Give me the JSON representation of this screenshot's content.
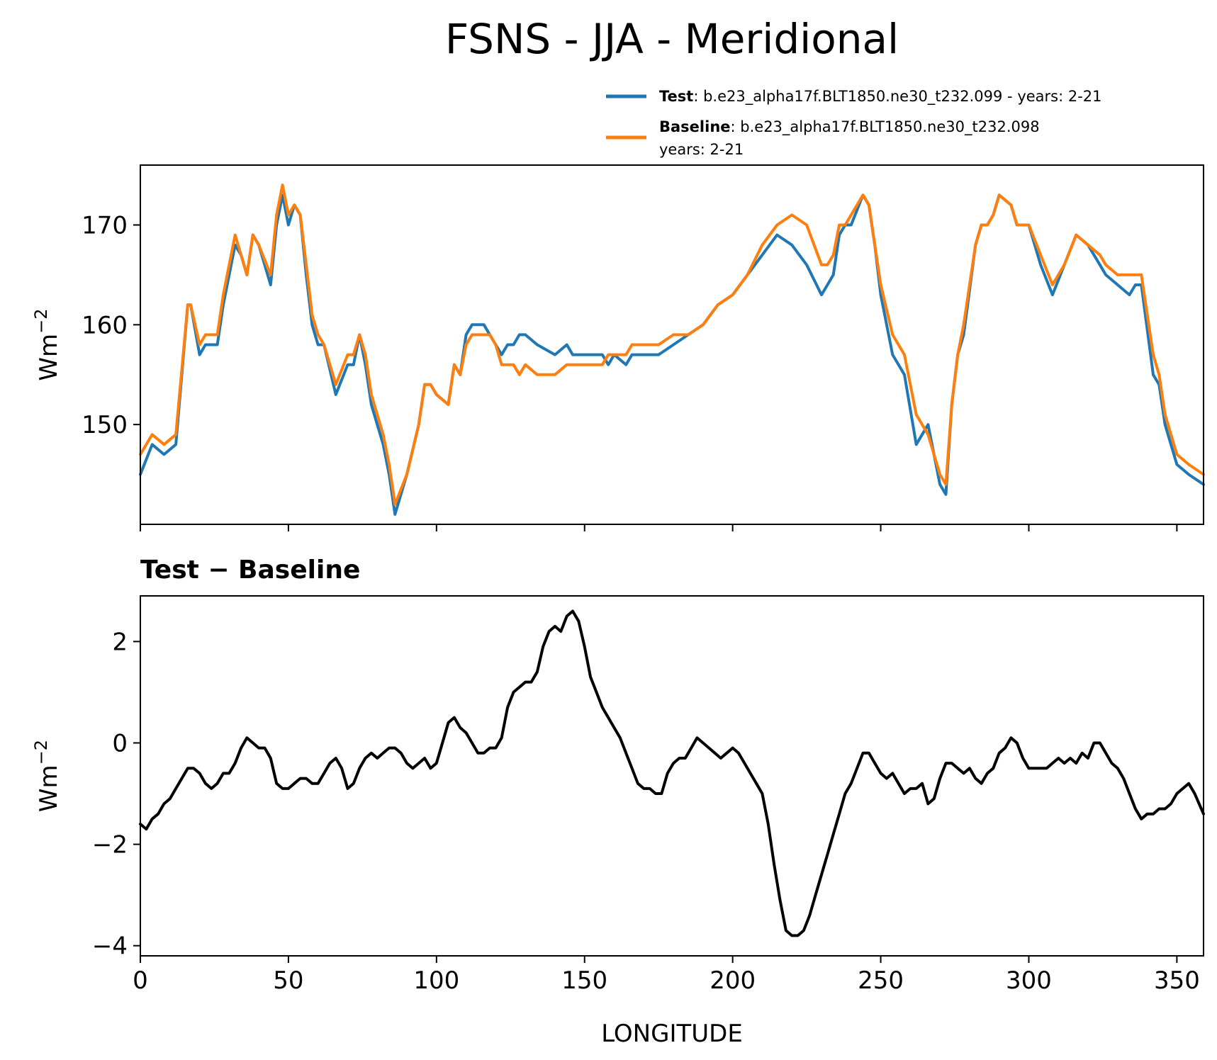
{
  "figure": {
    "title": "FSNS - JJA - Meridional",
    "xlabel": "LONGITUDE"
  },
  "legend": {
    "test_name": "Test",
    "test_desc": ": b.e23_alpha17f.BLT1850.ne30_t232.099 - years: 2-21",
    "baseline_name": "Baseline",
    "baseline_desc": ": b.e23_alpha17f.BLT1850.ne30_t232.098",
    "baseline_desc2": "years: 2-21"
  },
  "colors": {
    "test": "#1f77b4",
    "baseline": "#ff7f0e",
    "diff": "#000000"
  },
  "chart_data": [
    {
      "type": "line",
      "title": "",
      "xlabel": "",
      "ylabel_base": "Wm",
      "ylabel_exp": "−2",
      "xlim": [
        0,
        359
      ],
      "ylim": [
        140,
        176
      ],
      "xticks": [
        0,
        50,
        100,
        150,
        200,
        250,
        300,
        350
      ],
      "yticks": [
        150,
        160,
        170
      ],
      "series": [
        {
          "name": "Test",
          "x": [
            0,
            4,
            8,
            12,
            16,
            17,
            20,
            22,
            26,
            28,
            32,
            34,
            36,
            38,
            40,
            44,
            46,
            48,
            50,
            52,
            54,
            56,
            58,
            60,
            62,
            66,
            70,
            72,
            74,
            76,
            78,
            82,
            84,
            86,
            90,
            94,
            96,
            98,
            100,
            104,
            106,
            108,
            110,
            112,
            116,
            118,
            120,
            122,
            124,
            126,
            128,
            130,
            134,
            140,
            144,
            146,
            148,
            150,
            154,
            156,
            158,
            160,
            164,
            166,
            170,
            175,
            180,
            185,
            190,
            195,
            200,
            205,
            210,
            215,
            220,
            225,
            230,
            232,
            234,
            236,
            238,
            240,
            244,
            246,
            248,
            250,
            254,
            258,
            262,
            266,
            270,
            272,
            274,
            276,
            278,
            282,
            284,
            286,
            288,
            290,
            294,
            296,
            300,
            304,
            308,
            312,
            316,
            320,
            324,
            326,
            330,
            334,
            336,
            338,
            342,
            344,
            346,
            350,
            354,
            359
          ],
          "values": [
            145,
            148,
            147,
            148,
            162,
            162,
            157,
            158,
            158,
            162,
            168,
            167,
            165,
            169,
            168,
            164,
            170,
            173,
            170,
            172,
            171,
            165,
            160,
            158,
            158,
            153,
            156,
            156,
            159,
            156,
            152,
            148,
            145,
            141,
            145,
            150,
            154,
            154,
            153,
            152,
            156,
            155,
            159,
            160,
            160,
            159,
            158,
            157,
            158,
            158,
            159,
            159,
            158,
            157,
            158,
            157,
            157,
            157,
            157,
            157,
            156,
            157,
            156,
            157,
            157,
            157,
            158,
            159,
            160,
            162,
            163,
            165,
            167,
            169,
            168,
            166,
            163,
            164,
            165,
            169,
            170,
            170,
            173,
            172,
            168,
            163,
            157,
            155,
            148,
            150,
            144,
            143,
            152,
            157,
            159,
            168,
            170,
            170,
            171,
            173,
            172,
            170,
            170,
            166,
            163,
            166,
            169,
            168,
            166,
            165,
            164,
            163,
            164,
            164,
            155,
            154,
            150,
            146,
            145,
            144
          ]
        },
        {
          "name": "Baseline",
          "x": [
            0,
            4,
            8,
            12,
            16,
            17,
            20,
            22,
            26,
            28,
            32,
            34,
            36,
            38,
            40,
            44,
            46,
            48,
            50,
            52,
            54,
            56,
            58,
            60,
            62,
            66,
            70,
            72,
            74,
            76,
            78,
            82,
            84,
            86,
            90,
            94,
            96,
            98,
            100,
            104,
            106,
            108,
            110,
            112,
            116,
            118,
            120,
            122,
            124,
            126,
            128,
            130,
            134,
            140,
            144,
            146,
            148,
            150,
            154,
            156,
            158,
            160,
            164,
            166,
            170,
            175,
            180,
            185,
            190,
            195,
            200,
            205,
            210,
            215,
            220,
            225,
            230,
            232,
            234,
            236,
            238,
            240,
            244,
            246,
            248,
            250,
            254,
            258,
            262,
            266,
            270,
            272,
            274,
            276,
            278,
            282,
            284,
            286,
            288,
            290,
            294,
            296,
            300,
            304,
            308,
            312,
            316,
            320,
            324,
            326,
            330,
            334,
            336,
            338,
            342,
            344,
            346,
            350,
            354,
            359
          ],
          "values": [
            147,
            149,
            148,
            149,
            162,
            162,
            158,
            159,
            159,
            163,
            169,
            167,
            165,
            169,
            168,
            165,
            171,
            174,
            171,
            172,
            171,
            166,
            161,
            159,
            158,
            154,
            157,
            157,
            159,
            157,
            153,
            149,
            146,
            142,
            145,
            150,
            154,
            154,
            153,
            152,
            156,
            155,
            158,
            159,
            159,
            159,
            158,
            156,
            156,
            156,
            155,
            156,
            155,
            155,
            156,
            156,
            156,
            156,
            156,
            156,
            157,
            157,
            157,
            158,
            158,
            158,
            159,
            159,
            160,
            162,
            163,
            165,
            168,
            170,
            171,
            170,
            166,
            166,
            167,
            170,
            170,
            171,
            173,
            172,
            168,
            164,
            159,
            157,
            151,
            149,
            145,
            144,
            152,
            157,
            160,
            168,
            170,
            170,
            171,
            173,
            172,
            170,
            170,
            167,
            164,
            166,
            169,
            168,
            167,
            166,
            165,
            165,
            165,
            165,
            157,
            155,
            151,
            147,
            146,
            145
          ]
        }
      ]
    },
    {
      "type": "line",
      "title": "Test − Baseline",
      "xlabel": "LONGITUDE",
      "ylabel_base": "Wm",
      "ylabel_exp": "−2",
      "xlim": [
        0,
        359
      ],
      "ylim": [
        -4.2,
        2.9
      ],
      "xticks": [
        0,
        50,
        100,
        150,
        200,
        250,
        300,
        350
      ],
      "yticks": [
        -4,
        -2,
        0,
        2
      ],
      "series": [
        {
          "name": "",
          "x": [
            0,
            2,
            4,
            6,
            8,
            10,
            12,
            14,
            16,
            18,
            20,
            22,
            24,
            26,
            28,
            30,
            32,
            34,
            36,
            38,
            40,
            42,
            44,
            46,
            48,
            50,
            52,
            54,
            56,
            58,
            60,
            62,
            64,
            66,
            68,
            70,
            72,
            74,
            76,
            78,
            80,
            82,
            84,
            86,
            88,
            90,
            92,
            94,
            96,
            98,
            100,
            102,
            104,
            106,
            108,
            110,
            112,
            114,
            116,
            118,
            120,
            122,
            124,
            126,
            128,
            130,
            132,
            134,
            136,
            138,
            140,
            142,
            144,
            146,
            148,
            150,
            152,
            154,
            156,
            158,
            160,
            162,
            164,
            166,
            168,
            170,
            172,
            174,
            176,
            178,
            180,
            182,
            184,
            186,
            188,
            190,
            192,
            194,
            196,
            198,
            200,
            202,
            204,
            206,
            208,
            210,
            212,
            214,
            216,
            218,
            220,
            222,
            224,
            226,
            228,
            230,
            232,
            234,
            236,
            238,
            240,
            242,
            244,
            246,
            248,
            250,
            252,
            254,
            256,
            258,
            260,
            262,
            264,
            266,
            268,
            270,
            272,
            274,
            276,
            278,
            280,
            282,
            284,
            286,
            288,
            290,
            292,
            294,
            296,
            298,
            300,
            302,
            304,
            306,
            308,
            310,
            312,
            314,
            316,
            318,
            320,
            322,
            324,
            326,
            328,
            330,
            332,
            334,
            336,
            338,
            340,
            342,
            344,
            346,
            348,
            350,
            352,
            354,
            356,
            359
          ],
          "values": [
            -1.6,
            -1.7,
            -1.5,
            -1.4,
            -1.2,
            -1.1,
            -0.9,
            -0.7,
            -0.5,
            -0.5,
            -0.6,
            -0.8,
            -0.9,
            -0.8,
            -0.6,
            -0.6,
            -0.4,
            -0.1,
            0.1,
            0.0,
            -0.1,
            -0.1,
            -0.3,
            -0.8,
            -0.9,
            -0.9,
            -0.8,
            -0.7,
            -0.7,
            -0.8,
            -0.8,
            -0.6,
            -0.4,
            -0.3,
            -0.5,
            -0.9,
            -0.8,
            -0.5,
            -0.3,
            -0.2,
            -0.3,
            -0.2,
            -0.1,
            -0.1,
            -0.2,
            -0.4,
            -0.5,
            -0.4,
            -0.3,
            -0.5,
            -0.4,
            0.0,
            0.4,
            0.5,
            0.3,
            0.2,
            0.0,
            -0.2,
            -0.2,
            -0.1,
            -0.1,
            0.1,
            0.7,
            1.0,
            1.1,
            1.2,
            1.2,
            1.4,
            1.9,
            2.2,
            2.3,
            2.2,
            2.5,
            2.6,
            2.4,
            1.9,
            1.3,
            1.0,
            0.7,
            0.5,
            0.3,
            0.1,
            -0.2,
            -0.5,
            -0.8,
            -0.9,
            -0.9,
            -1.0,
            -1.0,
            -0.6,
            -0.4,
            -0.3,
            -0.3,
            -0.1,
            0.1,
            0.0,
            -0.1,
            -0.2,
            -0.3,
            -0.2,
            -0.1,
            -0.2,
            -0.4,
            -0.6,
            -0.8,
            -1.0,
            -1.6,
            -2.4,
            -3.1,
            -3.7,
            -3.8,
            -3.8,
            -3.7,
            -3.4,
            -3.0,
            -2.6,
            -2.2,
            -1.8,
            -1.4,
            -1.0,
            -0.8,
            -0.5,
            -0.2,
            -0.2,
            -0.4,
            -0.6,
            -0.7,
            -0.6,
            -0.8,
            -1.0,
            -0.9,
            -0.9,
            -0.8,
            -1.2,
            -1.1,
            -0.7,
            -0.4,
            -0.4,
            -0.5,
            -0.6,
            -0.5,
            -0.7,
            -0.8,
            -0.6,
            -0.5,
            -0.2,
            -0.1,
            0.1,
            0.0,
            -0.3,
            -0.5,
            -0.5,
            -0.5,
            -0.5,
            -0.4,
            -0.3,
            -0.4,
            -0.3,
            -0.4,
            -0.2,
            -0.3,
            0.0,
            0.0,
            -0.2,
            -0.4,
            -0.5,
            -0.7,
            -1.0,
            -1.3,
            -1.5,
            -1.4,
            -1.4,
            -1.3,
            -1.3,
            -1.2,
            -1.0,
            -0.9,
            -0.8,
            -1.0,
            -1.4
          ]
        }
      ]
    }
  ]
}
